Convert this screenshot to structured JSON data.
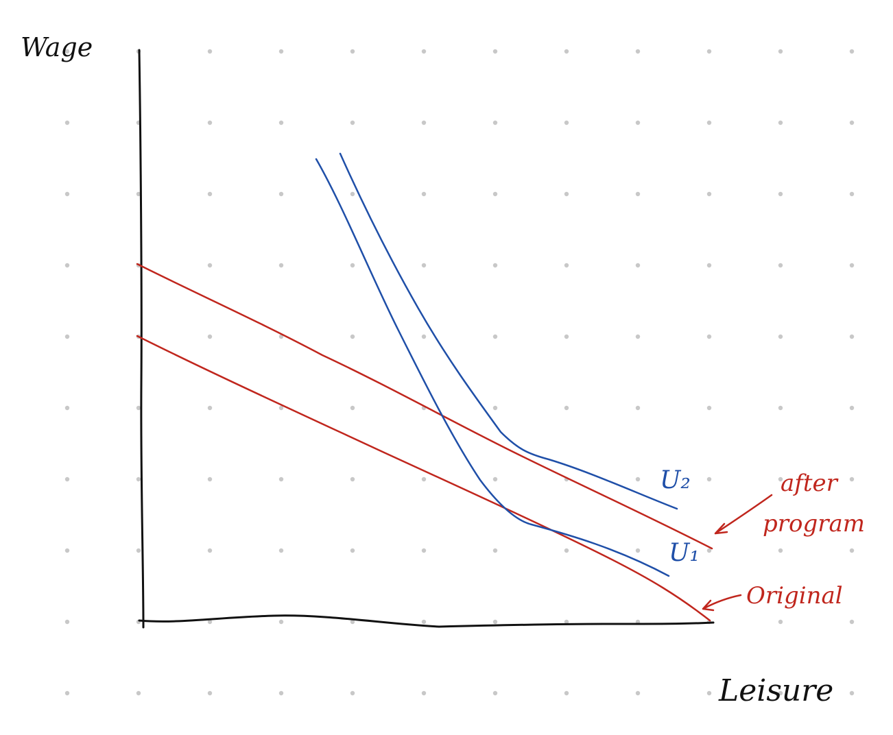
{
  "axes": {
    "y_label": "Wage",
    "x_label": "Leisure"
  },
  "curves": {
    "u1_label": "U₁",
    "u2_label": "U₂"
  },
  "budget_lines": {
    "after_line1": "after",
    "after_line2": "program",
    "original": "Original"
  },
  "colors": {
    "axis": "#111111",
    "budget": "#c0261d",
    "indifference": "#1f4fa8",
    "grid_dot": "#c8c8c8"
  }
}
